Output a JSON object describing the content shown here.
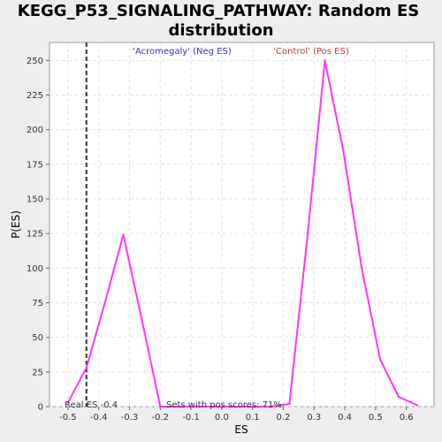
{
  "chart_data": {
    "type": "line",
    "title_line1": "KEGG_P53_SIGNALING_PATHWAY: Random ES",
    "title_line2": "distribution",
    "xlabel": "ES",
    "ylabel": "P(ES)",
    "xlim": [
      -0.56,
      0.69
    ],
    "ylim": [
      0,
      263
    ],
    "xticks": [
      "-0.5",
      "-0.4",
      "-0.3",
      "-0.2",
      "-0.1",
      "0.0",
      "0.1",
      "0.2",
      "0.3",
      "0.4",
      "0.5",
      "0.6"
    ],
    "yticks": [
      "0",
      "25",
      "50",
      "75",
      "100",
      "125",
      "150",
      "175",
      "200",
      "225",
      "250"
    ],
    "grid": true,
    "series": [
      {
        "color": "#ff33ff",
        "x": [
          -0.5,
          -0.44,
          -0.38,
          -0.32,
          -0.26,
          -0.2,
          -0.14,
          -0.08,
          -0.02,
          0.04,
          0.1,
          0.16,
          0.22,
          0.28,
          0.335,
          0.395,
          0.455,
          0.515,
          0.575,
          0.635
        ],
        "y": [
          3,
          28,
          75,
          124,
          63,
          0,
          0,
          0,
          0,
          0,
          0,
          0,
          2,
          126,
          250,
          185,
          100,
          34,
          7,
          1
        ]
      }
    ],
    "real_es_line": {
      "x": -0.44,
      "label": "Real ES -0.4"
    },
    "annotations": {
      "neg_label": "'Acromegaly' (Neg ES)",
      "neg_color": "#3333cc",
      "pos_label": "'Control' (Pos ES)",
      "pos_color": "#cc3333",
      "pos_scores": "Sets with pos scores: 71%"
    }
  }
}
